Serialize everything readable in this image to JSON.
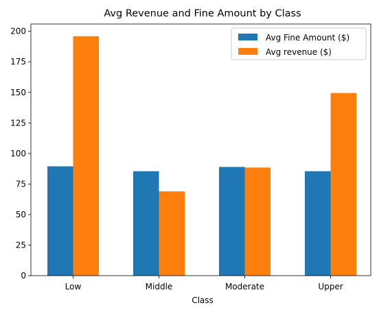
{
  "chart_data": {
    "type": "bar",
    "title": "Avg Revenue and Fine Amount by Class",
    "xlabel": "Class",
    "ylabel": "",
    "categories": [
      "Low",
      "Middle",
      "Moderate",
      "Upper"
    ],
    "series": [
      {
        "name": "Avg Fine Amount ($)",
        "values": [
          89.5,
          85.5,
          89.0,
          85.5
        ],
        "color": "#1f77b4"
      },
      {
        "name": "Avg revenue ($)",
        "values": [
          196.0,
          69.0,
          88.5,
          149.5
        ],
        "color": "#ff7f0e"
      }
    ],
    "ylim": [
      0,
      206
    ],
    "yticks": [
      0,
      25,
      50,
      75,
      100,
      125,
      150,
      175,
      200
    ],
    "grid": false,
    "legend_position": "top-right"
  }
}
